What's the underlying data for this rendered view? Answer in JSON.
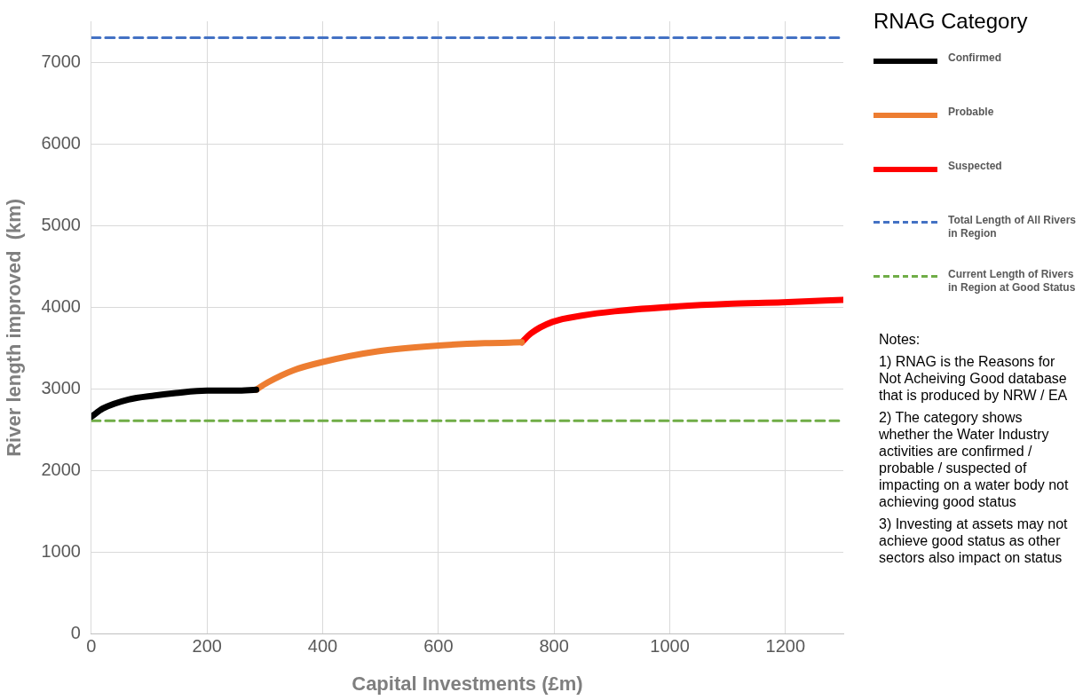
{
  "chart_data": {
    "type": "line",
    "xlabel": "Capital Investments (£m)",
    "ylabel": "River length improved  (km)",
    "legend_title": "RNAG Category",
    "legend": "right",
    "grid": true,
    "marker": "none",
    "xlim": [
      0,
      1300
    ],
    "xticks": [
      0,
      200,
      400,
      600,
      800,
      1000,
      1200
    ],
    "ylim": [
      0,
      7500
    ],
    "yticks": [
      0,
      1000,
      2000,
      3000,
      4000,
      5000,
      6000,
      7000
    ],
    "series": [
      {
        "name": "Confirmed",
        "color": "#000000",
        "x": [
          0,
          20,
          64,
          110,
          146,
          200,
          250,
          285
        ],
        "values": [
          2660,
          2760,
          2870,
          2920,
          2950,
          2980,
          2980,
          2990
        ]
      },
      {
        "name": "Probable",
        "color": "#ed7d31",
        "x": [
          285,
          305,
          350,
          400,
          495,
          600,
          680,
          744
        ],
        "values": [
          2990,
          3080,
          3230,
          3330,
          3460,
          3530,
          3560,
          3570
        ]
      },
      {
        "name": "Suspected",
        "color": "#ff0000",
        "x": [
          744,
          760,
          797,
          850,
          905,
          1015,
          1100,
          1195,
          1300
        ],
        "values": [
          3570,
          3680,
          3820,
          3900,
          3950,
          4010,
          4040,
          4060,
          4090
        ]
      },
      {
        "name": "Total Length of All Rivers in Region",
        "color": "#4472c4",
        "line_style": "dashed",
        "x": [
          0,
          1300
        ],
        "values": [
          7300,
          7300
        ]
      },
      {
        "name": "Current Length of Rivers in Region at Good Status",
        "color": "#70ad47",
        "line_style": "dashed",
        "x": [
          0,
          1300
        ],
        "values": [
          2610,
          2610
        ]
      }
    ],
    "annotations": [
      "Notes:",
      "1) RNAG is the Reasons for Not Acheiving Good database that is produced by NRW / EA",
      "2) The category shows whether the Water Industry activities are confirmed / probable / suspected of impacting on a water body not achieving good status",
      "3) Investing at assets may not achieve good status as other sectors also impact on status"
    ]
  }
}
